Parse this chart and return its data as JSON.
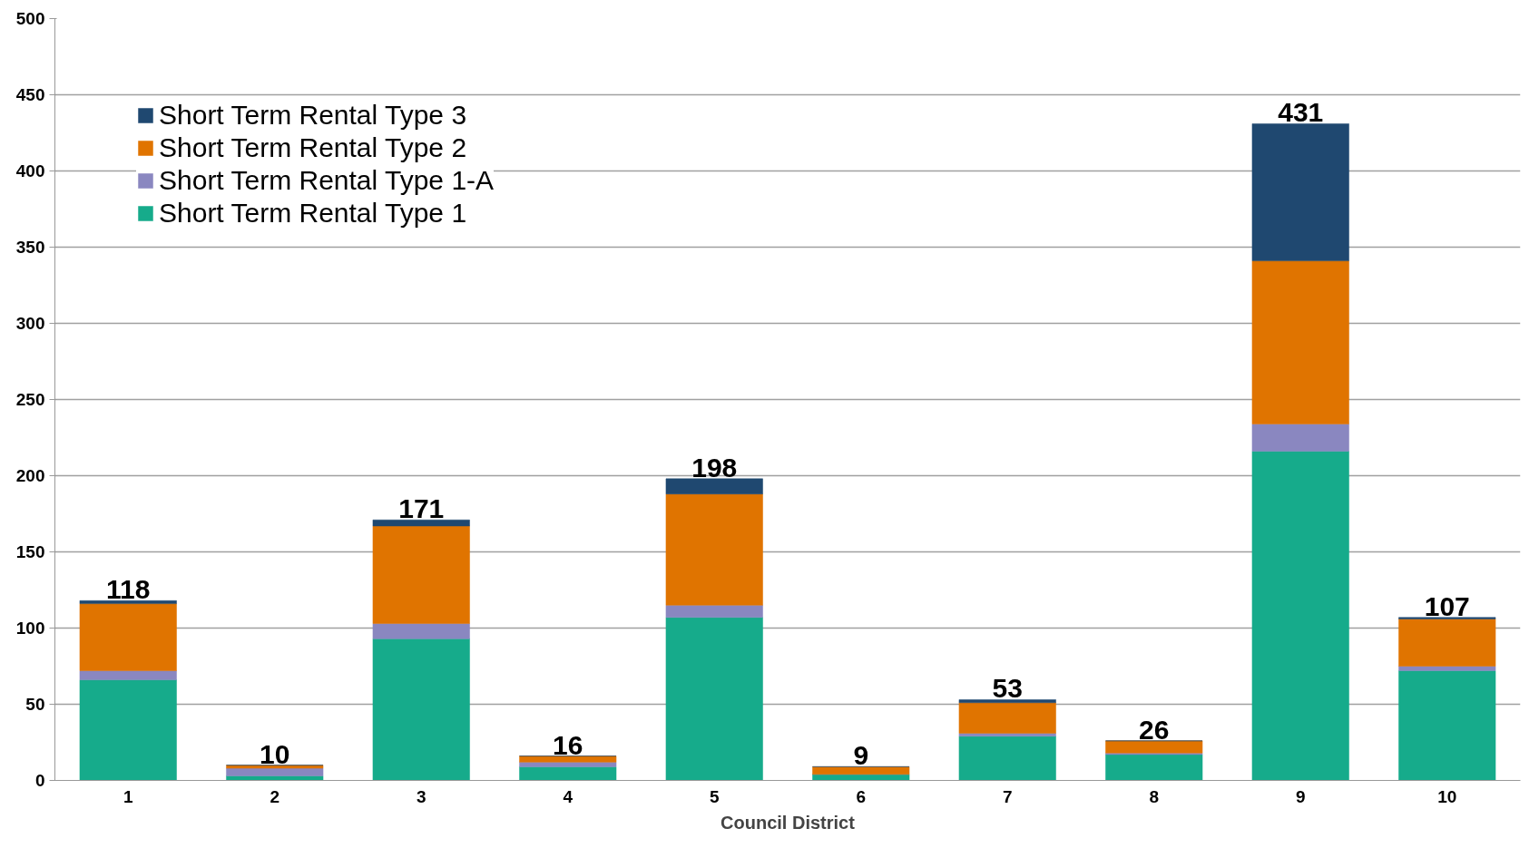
{
  "chart_data": {
    "type": "bar",
    "stacked": true,
    "xlabel": "Council District",
    "categories": [
      "1",
      "2",
      "3",
      "4",
      "5",
      "6",
      "7",
      "8",
      "9",
      "10"
    ],
    "series": [
      {
        "name": "Short Term Rental Type 1",
        "color": "#16ab8b",
        "values": [
          66,
          3,
          93,
          9,
          107,
          4,
          29,
          17,
          216,
          72
        ]
      },
      {
        "name": "Short Term Rental Type 1-A",
        "color": "#8a87c0",
        "values": [
          6,
          5,
          10,
          3,
          8,
          0,
          2,
          1,
          18,
          3
        ]
      },
      {
        "name": "Short Term Rental Type 2",
        "color": "#e07400",
        "values": [
          44,
          2,
          64,
          4,
          73,
          5,
          20,
          8,
          107,
          31
        ]
      },
      {
        "name": "Short Term Rental Type 3",
        "color": "#1f4870",
        "values": [
          2,
          0,
          4,
          0,
          10,
          0,
          2,
          0,
          90,
          1
        ]
      }
    ],
    "totals": [
      "118",
      "10",
      "171",
      "16",
      "198",
      "9",
      "53",
      "26",
      "431",
      "107"
    ],
    "ylim": [
      0,
      500
    ],
    "yticks": [
      0,
      50,
      100,
      150,
      200,
      250,
      300,
      350,
      400,
      450,
      500
    ],
    "grid": "y",
    "legend": "top left"
  }
}
